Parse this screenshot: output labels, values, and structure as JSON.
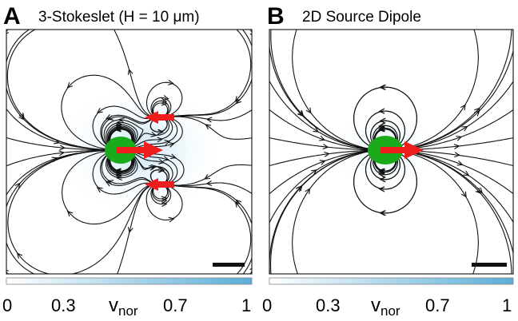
{
  "panels": [
    {
      "letter": "A",
      "title": "3-Stokeslet (H = 10 μm)",
      "source_strengths": [
        1,
        -0.5,
        -0.5
      ],
      "colorbar": {
        "ticks": [
          "0",
          "0.3",
          "0.7",
          "1"
        ],
        "label_main": "v",
        "label_sub": "nor"
      }
    },
    {
      "letter": "B",
      "title": "2D Source Dipole",
      "source_strengths": [
        1
      ],
      "colorbar": {
        "ticks": [
          "0",
          "0.3",
          "0.7",
          "1"
        ],
        "label_main": "v",
        "label_sub": "nor"
      }
    }
  ],
  "colors": {
    "body": "#1aab1a",
    "arrow": "#ee1c1c",
    "streamline": "#111111",
    "colorbar_low": "#ffffff",
    "colorbar_high": "#5aaed8",
    "scale_bar": "#111111"
  }
}
